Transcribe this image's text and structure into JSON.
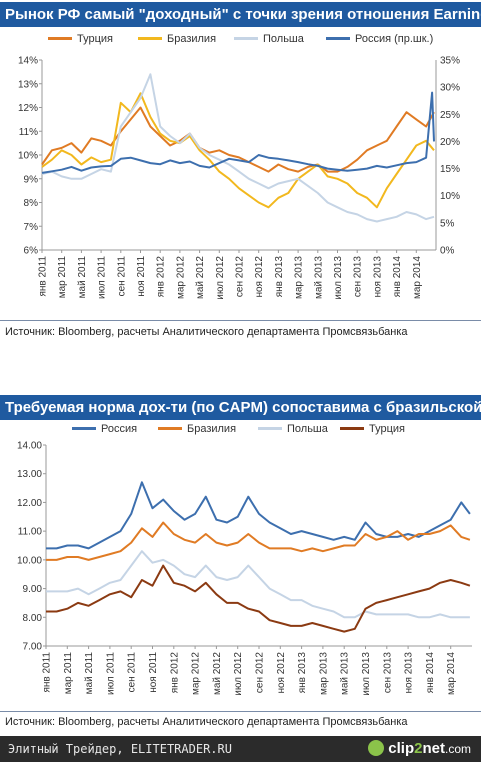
{
  "chart1": {
    "title": "Рынок РФ самый \"доходный\" с точки зрения отношения Earnings/P",
    "source": "Источник: Bloomberg, расчеты Аналитического департамента Промсвязьбанка"
  },
  "chart2": {
    "title": "Требуемая норма дох-ти (по CAPM) сопоставима с бразильской",
    "source": "Источник: Bloomberg, расчеты Аналитического департамента Промсвязьбанка"
  },
  "footer": {
    "text": "Элитный Трейдер, ELITETRADER.RU",
    "logo_part1": "clip",
    "logo_part2": "2",
    "logo_part3": "net",
    "logo_part4": ".com"
  },
  "chart_data": [
    {
      "type": "line",
      "title": "Рынок РФ самый \"доходный\" с точки зрения отношения Earnings/P",
      "x_tick_labels": [
        "янв 2011",
        "мар 2011",
        "май 2011",
        "июл 2011",
        "сен 2011",
        "ноя 2011",
        "янв 2012",
        "мар 2012",
        "май 2012",
        "июл 2012",
        "сен 2012",
        "ноя 2012",
        "янв 2013",
        "мар 2013",
        "май 2013",
        "июл 2013",
        "сен 2013",
        "ноя 2013",
        "янв 2014",
        "мар 2014"
      ],
      "x_months": [
        0,
        2,
        4,
        6,
        8,
        10,
        12,
        14,
        16,
        18,
        20,
        22,
        24,
        26,
        28,
        30,
        32,
        34,
        36,
        38
      ],
      "xlim": [
        0,
        40
      ],
      "y_left": {
        "ylim": [
          6,
          14
        ],
        "tick_labels": [
          "6%",
          "7%",
          "8%",
          "9%",
          "10%",
          "11%",
          "12%",
          "13%",
          "14%"
        ]
      },
      "y_right": {
        "ylim": [
          0,
          35
        ],
        "tick_labels": [
          "0%",
          "5%",
          "10%",
          "15%",
          "20%",
          "25%",
          "30%",
          "35%"
        ]
      },
      "grid": false,
      "legend_position": "top",
      "series": [
        {
          "name": "Турция",
          "color": "#e07b24",
          "axis": "left",
          "x": [
            0,
            1,
            2,
            3,
            4,
            5,
            6,
            7,
            8,
            9,
            10,
            11,
            12,
            13,
            14,
            15,
            16,
            17,
            18,
            19,
            20,
            21,
            22,
            23,
            24,
            25,
            26,
            27,
            28,
            29,
            30,
            31,
            32,
            33,
            34,
            35,
            36,
            37,
            38,
            39,
            39.8
          ],
          "y": [
            9.6,
            10.2,
            10.3,
            10.5,
            10.1,
            10.7,
            10.6,
            10.4,
            11.0,
            11.5,
            12.0,
            11.2,
            10.8,
            10.4,
            10.6,
            10.9,
            10.3,
            10.1,
            10.2,
            10.0,
            9.9,
            9.7,
            9.5,
            9.3,
            9.6,
            9.4,
            9.3,
            9.5,
            9.6,
            9.3,
            9.3,
            9.5,
            9.8,
            10.2,
            10.4,
            10.6,
            11.2,
            11.8,
            11.5,
            11.2,
            11.8
          ]
        },
        {
          "name": "Бразилия",
          "color": "#f2b81e",
          "axis": "left",
          "x": [
            0,
            1,
            2,
            3,
            4,
            5,
            6,
            7,
            8,
            9,
            10,
            11,
            12,
            13,
            14,
            15,
            16,
            17,
            18,
            19,
            20,
            21,
            22,
            23,
            24,
            25,
            26,
            27,
            28,
            29,
            30,
            31,
            32,
            33,
            34,
            35,
            36,
            37,
            38,
            39,
            39.8
          ],
          "y": [
            9.5,
            9.8,
            10.2,
            10.0,
            9.6,
            9.9,
            9.7,
            9.8,
            12.2,
            11.8,
            12.6,
            11.6,
            10.9,
            10.6,
            10.5,
            10.8,
            10.2,
            9.8,
            9.3,
            9.0,
            8.6,
            8.3,
            8.0,
            7.8,
            8.2,
            8.4,
            9.0,
            9.3,
            9.6,
            9.1,
            9.0,
            8.8,
            8.4,
            8.2,
            7.8,
            8.6,
            9.2,
            9.8,
            10.4,
            10.6,
            10.2
          ]
        },
        {
          "name": "Польша",
          "color": "#c5d4e5",
          "axis": "left",
          "x": [
            0,
            1,
            2,
            3,
            4,
            5,
            6,
            7,
            8,
            9,
            10,
            11,
            12,
            13,
            14,
            15,
            16,
            17,
            18,
            19,
            20,
            21,
            22,
            23,
            24,
            25,
            26,
            27,
            28,
            29,
            30,
            31,
            32,
            33,
            34,
            35,
            36,
            37,
            38,
            39,
            39.8
          ],
          "y": [
            9.2,
            9.3,
            9.1,
            9.0,
            9.0,
            9.2,
            9.4,
            9.3,
            11.2,
            11.8,
            12.4,
            13.4,
            11.2,
            10.8,
            10.5,
            10.9,
            10.3,
            10.0,
            9.8,
            9.6,
            9.3,
            9.0,
            8.8,
            8.6,
            8.8,
            8.9,
            9.0,
            8.7,
            8.4,
            8.0,
            7.8,
            7.6,
            7.5,
            7.3,
            7.2,
            7.3,
            7.4,
            7.6,
            7.5,
            7.3,
            7.4
          ]
        },
        {
          "name": "Россия (пр.шк.)",
          "color": "#3d6fae",
          "axis": "right",
          "x": [
            0,
            1,
            2,
            3,
            4,
            5,
            6,
            7,
            8,
            9,
            10,
            11,
            12,
            13,
            14,
            15,
            16,
            17,
            18,
            19,
            20,
            21,
            22,
            23,
            24,
            25,
            26,
            27,
            28,
            29,
            30,
            31,
            32,
            33,
            34,
            35,
            36,
            37,
            38,
            39,
            39.6,
            39.8
          ],
          "y": [
            14.2,
            14.5,
            14.8,
            15.3,
            14.6,
            15.2,
            15.4,
            15.5,
            16.8,
            17.0,
            16.5,
            16.0,
            15.8,
            16.5,
            16.0,
            16.3,
            15.5,
            15.2,
            16.0,
            16.8,
            16.5,
            16.2,
            17.5,
            17.0,
            16.8,
            16.5,
            16.2,
            15.8,
            15.5,
            15.0,
            14.8,
            14.6,
            14.8,
            15.0,
            15.5,
            15.2,
            15.6,
            16.0,
            16.2,
            17.0,
            29.0,
            20.0
          ]
        }
      ]
    },
    {
      "type": "line",
      "title": "Требуемая норма дох-ти (по CAPM) сопоставима с бразильской",
      "x_tick_labels": [
        "янв 2011",
        "мар 2011",
        "май 2011",
        "июл 2011",
        "сен 2011",
        "ноя 2011",
        "янв 2012",
        "мар 2012",
        "май 2012",
        "июл 2012",
        "сен 2012",
        "ноя 2012",
        "янв 2013",
        "мар 2013",
        "май 2013",
        "июл 2013",
        "сен 2013",
        "ноя 2013",
        "янв 2014",
        "мар 2014"
      ],
      "x_months": [
        0,
        2,
        4,
        6,
        8,
        10,
        12,
        14,
        16,
        18,
        20,
        22,
        24,
        26,
        28,
        30,
        32,
        34,
        36,
        38
      ],
      "xlim": [
        0,
        40
      ],
      "ylim": [
        7,
        14
      ],
      "y_tick_labels": [
        "7.00",
        "8.00",
        "9.00",
        "10.00",
        "11.00",
        "12.00",
        "13.00",
        "14.00"
      ],
      "grid": false,
      "legend_position": "top",
      "series": [
        {
          "name": "Россия",
          "color": "#3d6fae",
          "x": [
            0,
            1,
            2,
            3,
            4,
            5,
            6,
            7,
            8,
            9,
            10,
            11,
            12,
            13,
            14,
            15,
            16,
            17,
            18,
            19,
            20,
            21,
            22,
            23,
            24,
            25,
            26,
            27,
            28,
            29,
            30,
            31,
            32,
            33,
            34,
            35,
            36,
            37,
            38,
            39,
            39.8
          ],
          "y": [
            10.4,
            10.4,
            10.5,
            10.5,
            10.4,
            10.6,
            10.8,
            11.0,
            11.6,
            12.7,
            11.8,
            12.1,
            11.7,
            11.4,
            11.6,
            12.2,
            11.4,
            11.3,
            11.5,
            12.2,
            11.6,
            11.3,
            11.1,
            10.9,
            11.0,
            10.9,
            10.8,
            10.7,
            10.8,
            10.7,
            11.3,
            10.9,
            10.8,
            10.8,
            10.9,
            10.8,
            11.0,
            11.2,
            11.4,
            12.0,
            11.6
          ]
        },
        {
          "name": "Бразилия",
          "color": "#e07b24",
          "x": [
            0,
            1,
            2,
            3,
            4,
            5,
            6,
            7,
            8,
            9,
            10,
            11,
            12,
            13,
            14,
            15,
            16,
            17,
            18,
            19,
            20,
            21,
            22,
            23,
            24,
            25,
            26,
            27,
            28,
            29,
            30,
            31,
            32,
            33,
            34,
            35,
            36,
            37,
            38,
            39,
            39.8
          ],
          "y": [
            10.0,
            10.0,
            10.1,
            10.1,
            10.0,
            10.1,
            10.2,
            10.3,
            10.6,
            11.1,
            10.8,
            11.3,
            10.9,
            10.7,
            10.6,
            10.9,
            10.6,
            10.5,
            10.6,
            10.9,
            10.6,
            10.4,
            10.4,
            10.4,
            10.3,
            10.4,
            10.3,
            10.4,
            10.5,
            10.5,
            10.9,
            10.7,
            10.8,
            11.0,
            10.7,
            10.9,
            10.9,
            11.0,
            11.2,
            10.8,
            10.7
          ]
        },
        {
          "name": "Польша",
          "color": "#c5d4e5",
          "x": [
            0,
            1,
            2,
            3,
            4,
            5,
            6,
            7,
            8,
            9,
            10,
            11,
            12,
            13,
            14,
            15,
            16,
            17,
            18,
            19,
            20,
            21,
            22,
            23,
            24,
            25,
            26,
            27,
            28,
            29,
            30,
            31,
            32,
            33,
            34,
            35,
            36,
            37,
            38,
            39,
            39.8
          ],
          "y": [
            8.9,
            8.9,
            8.9,
            9.0,
            8.8,
            9.0,
            9.2,
            9.3,
            9.8,
            10.3,
            9.9,
            10.0,
            9.8,
            9.5,
            9.4,
            9.8,
            9.4,
            9.3,
            9.4,
            9.8,
            9.4,
            9.0,
            8.8,
            8.6,
            8.6,
            8.4,
            8.3,
            8.2,
            8.0,
            8.0,
            8.2,
            8.1,
            8.1,
            8.1,
            8.1,
            8.0,
            8.0,
            8.1,
            8.0,
            8.0,
            8.0
          ]
        },
        {
          "name": "Турция",
          "color": "#8b3a12",
          "x": [
            0,
            1,
            2,
            3,
            4,
            5,
            6,
            7,
            8,
            9,
            10,
            11,
            12,
            13,
            14,
            15,
            16,
            17,
            18,
            19,
            20,
            21,
            22,
            23,
            24,
            25,
            26,
            27,
            28,
            29,
            30,
            31,
            32,
            33,
            34,
            35,
            36,
            37,
            38,
            39,
            39.8
          ],
          "y": [
            8.2,
            8.2,
            8.3,
            8.5,
            8.4,
            8.6,
            8.8,
            8.9,
            8.7,
            9.3,
            9.1,
            9.8,
            9.2,
            9.1,
            8.9,
            9.2,
            8.8,
            8.5,
            8.5,
            8.3,
            8.2,
            7.9,
            7.8,
            7.7,
            7.7,
            7.8,
            7.7,
            7.6,
            7.5,
            7.6,
            8.3,
            8.5,
            8.6,
            8.7,
            8.8,
            8.9,
            9.0,
            9.2,
            9.3,
            9.2,
            9.1
          ]
        }
      ]
    }
  ]
}
